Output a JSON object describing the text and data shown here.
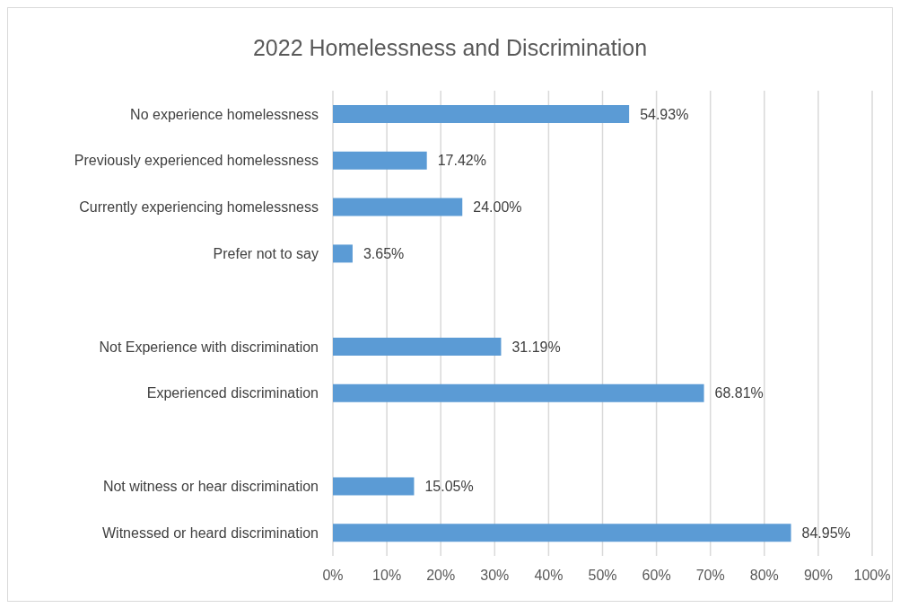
{
  "chart_data": {
    "type": "bar",
    "orientation": "horizontal",
    "title": "2022 Homelessness and Discrimination",
    "categories": [
      "No experience homelessness",
      "Previously experienced homelessness",
      "Currently experiencing homelessness",
      "Prefer not to say",
      null,
      "Not Experience with discrimination",
      "Experienced discrimination",
      null,
      "Not witness or hear discrimination",
      "Witnessed or heard discrimination"
    ],
    "values": [
      54.93,
      17.42,
      24.0,
      3.65,
      null,
      31.19,
      68.81,
      null,
      15.05,
      84.95
    ],
    "value_labels": [
      "54.93%",
      "17.42%",
      "24.00%",
      "3.65%",
      null,
      "31.19%",
      "68.81%",
      null,
      "15.05%",
      "84.95%"
    ],
    "color": "#5b9bd5",
    "xlim": [
      0,
      100
    ],
    "xticks": [
      {
        "value": 0,
        "label": "0%"
      },
      {
        "value": 10,
        "label": "10%"
      },
      {
        "value": 20,
        "label": "20%"
      },
      {
        "value": 30,
        "label": "30%"
      },
      {
        "value": 40,
        "label": "40%"
      },
      {
        "value": 50,
        "label": "50%"
      },
      {
        "value": 60,
        "label": "60%"
      },
      {
        "value": 70,
        "label": "70%"
      },
      {
        "value": 80,
        "label": "80%"
      },
      {
        "value": 90,
        "label": "90%"
      },
      {
        "value": 100,
        "label": "100%"
      }
    ],
    "grid": "x",
    "legend": false
  }
}
